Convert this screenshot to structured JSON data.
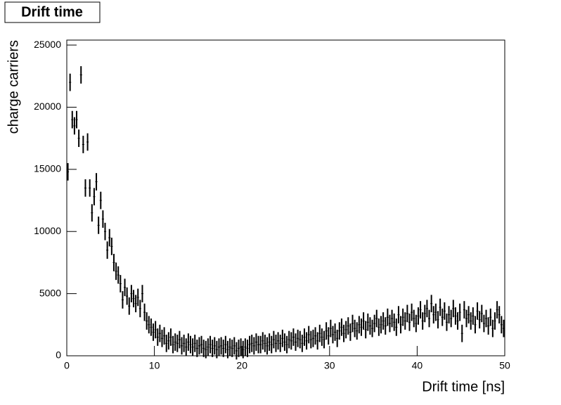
{
  "chart_data": {
    "type": "histogram",
    "title": "Drift time",
    "x_label": "Drift time [ns]",
    "y_label": "charge carriers",
    "color": "#000000",
    "bins": [
      0,
      0.25,
      0.5,
      0.75,
      1,
      1.25,
      1.5,
      1.75,
      2,
      2.25,
      2.5,
      2.75,
      3,
      3.25,
      3.5,
      3.75,
      4,
      4.25,
      4.5,
      4.75,
      5,
      5.25,
      5.5,
      5.75,
      6,
      6.25,
      6.5,
      6.75,
      7,
      7.25,
      7.5,
      7.75,
      8,
      8.25,
      8.5,
      8.75,
      9,
      9.25,
      9.5,
      9.75,
      10,
      10.25,
      10.5,
      10.75,
      11,
      11.25,
      11.5,
      11.75,
      12,
      12.25,
      12.5,
      12.75,
      13,
      13.25,
      13.5,
      13.75,
      14,
      14.25,
      14.5,
      14.75,
      15,
      15.25,
      15.5,
      15.75,
      16,
      16.25,
      16.5,
      16.75,
      17,
      17.25,
      17.5,
      17.75,
      18,
      18.25,
      18.5,
      18.75,
      19,
      19.25,
      19.5,
      19.75,
      20,
      20.25,
      20.5,
      20.75,
      21,
      21.25,
      21.5,
      21.75,
      22,
      22.25,
      22.5,
      22.75,
      23,
      23.25,
      23.5,
      23.75,
      24,
      24.25,
      24.5,
      24.75,
      25,
      25.25,
      25.5,
      25.75,
      26,
      26.25,
      26.5,
      26.75,
      27,
      27.25,
      27.5,
      27.75,
      28,
      28.25,
      28.5,
      28.75,
      29,
      29.25,
      29.5,
      29.75,
      30,
      30.25,
      30.5,
      30.75,
      31,
      31.25,
      31.5,
      31.75,
      32,
      32.25,
      32.5,
      32.75,
      33,
      33.25,
      33.5,
      33.75,
      34,
      34.25,
      34.5,
      34.75,
      35,
      35.25,
      35.5,
      35.75,
      36,
      36.25,
      36.5,
      36.75,
      37,
      37.25,
      37.5,
      37.75,
      38,
      38.25,
      38.5,
      38.75,
      39,
      39.25,
      39.5,
      39.75,
      40,
      40.25,
      40.5,
      40.75,
      41,
      41.25,
      41.5,
      41.75,
      42,
      42.25,
      42.5,
      42.75,
      43,
      43.25,
      43.5,
      43.75,
      44,
      44.25,
      44.5,
      44.75,
      45,
      45.25,
      45.5,
      45.75,
      46,
      46.25,
      46.5,
      46.75,
      47,
      47.25,
      47.5,
      47.75,
      48,
      48.25,
      48.5,
      48.75,
      49,
      49.25,
      49.5,
      49.75,
      50
    ],
    "values": [
      14800,
      22000,
      19000,
      18500,
      19000,
      17500,
      22600,
      17000,
      13500,
      17200,
      13500,
      11500,
      12800,
      14000,
      10500,
      12500,
      11000,
      10000,
      8500,
      9500,
      8800,
      7500,
      6800,
      6500,
      5800,
      4500,
      5500,
      4800,
      4000,
      5000,
      4600,
      4200,
      4700,
      3800,
      5000,
      3500,
      2800,
      2500,
      2300,
      1900,
      2100,
      1500,
      1800,
      1400,
      1600,
      1000,
      1200,
      1500,
      900,
      1100,
      1000,
      1300,
      800,
      1000,
      700,
      1100,
      900,
      700,
      1000,
      600,
      800,
      900,
      600,
      500,
      700,
      900,
      600,
      800,
      500,
      700,
      800,
      600,
      900,
      500,
      700,
      600,
      800,
      400,
      600,
      700,
      500,
      700,
      600,
      900,
      1000,
      800,
      1100,
      900,
      900,
      1200,
      1000,
      800,
      1100,
      900,
      1300,
      1000,
      1200,
      1000,
      1400,
      1100,
      900,
      1300,
      1200,
      1500,
      1100,
      1400,
      1300,
      1000,
      1500,
      1200,
      1700,
      1300,
      1400,
      1600,
      1200,
      1800,
      1500,
      1300,
      2000,
      1600,
      2200,
      1700,
      1900,
      1400,
      2000,
      2300,
      1800,
      2100,
      2400,
      1900,
      2600,
      2200,
      2000,
      2500,
      2300,
      2800,
      2100,
      2700,
      2400,
      2200,
      2600,
      3000,
      2300,
      2500,
      2800,
      2400,
      3100,
      2600,
      3000,
      2700,
      2300,
      3300,
      2500,
      3100,
      2800,
      3400,
      2700,
      3500,
      3000,
      2600,
      3200,
      3700,
      2800,
      3400,
      3800,
      3000,
      4200,
      3300,
      3500,
      2900,
      3900,
      3100,
      3600,
      2700,
      3300,
      3000,
      3800,
      3200,
      2800,
      3500,
      1800,
      3700,
      3000,
      3300,
      2800,
      3200,
      2500,
      3600,
      2900,
      3400,
      2600,
      3000,
      2400,
      3100,
      2200,
      2800,
      3700,
      3300,
      2500,
      2200
    ],
    "error": 700,
    "xlim": [
      0,
      50
    ],
    "xticks": [
      0,
      10,
      20,
      30,
      40,
      50
    ],
    "ylim": [
      0,
      25400
    ],
    "yticks": [
      0,
      5000,
      10000,
      15000,
      20000,
      25000
    ]
  }
}
